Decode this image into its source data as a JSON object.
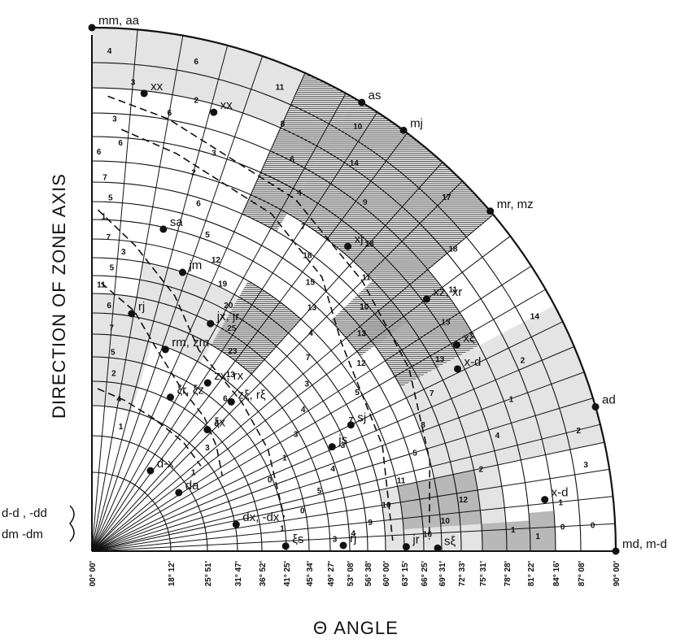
{
  "axis_title_vertical": "DIRECTION OF ZONE AXIS",
  "axis_title_bottom": "Θ ANGLE",
  "angle_ticks": [
    "00° 00'",
    "18° 12'",
    "25° 51'",
    "31° 47'",
    "36° 52'",
    "41° 25'",
    "45° 34'",
    "49° 27'",
    "53° 08'",
    "56° 38'",
    "60° 00'",
    "63° 15'",
    "66° 25'",
    "69° 31'",
    "72° 33'",
    "75° 31'",
    "78° 28'",
    "81° 22'",
    "84° 16'",
    "87° 08'",
    "90° 00'"
  ],
  "colors": {
    "line": "#111111",
    "shade_light": "#e4e4e4",
    "shade_dark": "#b8b8b8",
    "hatch": "#555555"
  },
  "points": [
    {
      "label": "mm, aa",
      "deg": 90.0,
      "r": 1.0
    },
    {
      "label": "as",
      "deg": 59.0,
      "r": 1.0
    },
    {
      "label": "mj",
      "deg": 53.5,
      "r": 1.0
    },
    {
      "label": "mr, mz",
      "deg": 40.5,
      "r": 1.0
    },
    {
      "label": "ad",
      "deg": 16.0,
      "r": 1.0
    },
    {
      "label": "md, m-d",
      "deg": 0.0,
      "r": 1.0
    },
    {
      "label": "xx",
      "deg": 83.5,
      "r": 0.88
    },
    {
      "label": "xx",
      "deg": 74.5,
      "r": 0.87
    },
    {
      "label": "xj",
      "deg": 50.0,
      "r": 0.76
    },
    {
      "label": "xz, xr",
      "deg": 37.0,
      "r": 0.8
    },
    {
      "label": "xξ",
      "deg": 29.5,
      "r": 0.8
    },
    {
      "label": "x-d",
      "deg": 26.5,
      "r": 0.78
    },
    {
      "label": "sa",
      "deg": 77.5,
      "r": 0.63
    },
    {
      "label": "jm",
      "deg": 72.0,
      "r": 0.56
    },
    {
      "label": "jx, jr",
      "deg": 62.5,
      "r": 0.49
    },
    {
      "label": "rj",
      "deg": 80.5,
      "r": 0.46
    },
    {
      "label": "rm, zm",
      "deg": 70.0,
      "r": 0.41
    },
    {
      "label": "zx, rx",
      "deg": 55.5,
      "r": 0.39
    },
    {
      "label": "zξ, rξ",
      "deg": 47.0,
      "r": 0.39
    },
    {
      "label": "ξr, ξz",
      "deg": 63.0,
      "r": 0.33
    },
    {
      "label": "ξx",
      "deg": 46.5,
      "r": 0.32
    },
    {
      "label": "sj",
      "deg": 26.0,
      "r": 0.55
    },
    {
      "label": "js",
      "deg": 23.5,
      "r": 0.5
    },
    {
      "label": "d-x",
      "deg": 54.0,
      "r": 0.19
    },
    {
      "label": "da",
      "deg": 34.0,
      "r": 0.2
    },
    {
      "label": "dx, -dx",
      "deg": 10.5,
      "r": 0.28
    },
    {
      "label": "x-d",
      "deg": 6.5,
      "r": 0.87
    },
    {
      "label": "ξs",
      "deg": 1.5,
      "r": 0.37
    },
    {
      "label": "rj",
      "deg": 1.3,
      "r": 0.48
    },
    {
      "label": "jr",
      "deg": 0.8,
      "r": 0.6
    },
    {
      "label": "sξ",
      "deg": 0.5,
      "r": 0.66
    }
  ],
  "origin_labels": {
    "upper": "d-d , -dd",
    "lower": "dm  -dm"
  }
}
